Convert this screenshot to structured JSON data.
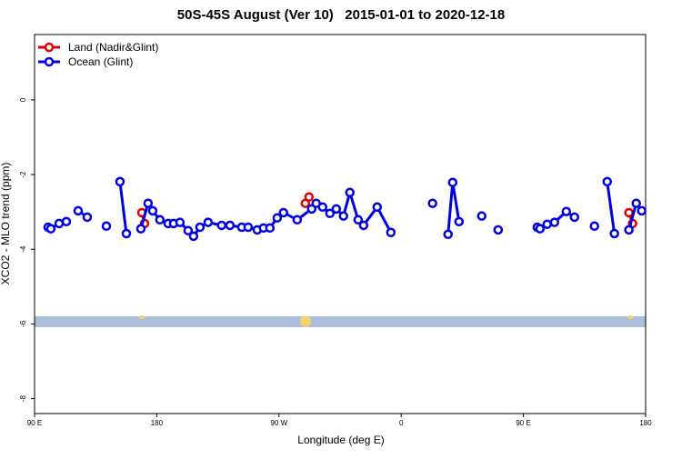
{
  "chart_data": {
    "type": "line",
    "title": "50S-45S August (Ver 10)   2015-01-01 to 2020-12-18",
    "x_label": "Longitude (deg E)",
    "y_label": "XCO2 - MLO trend (ppm)",
    "xlim": [
      90,
      540
    ],
    "ylim": [
      -8.4,
      1.75
    ],
    "xticks": [
      {
        "value": 90,
        "label": "90 E"
      },
      180,
      {
        "value": 270,
        "label": "90 W"
      },
      {
        "value": 360,
        "label": "0"
      },
      {
        "value": 450,
        "label": "90 E"
      },
      {
        "value": 540,
        "label": "180"
      }
    ],
    "yticks": [
      0,
      -2,
      -4,
      -6,
      -8
    ],
    "legend_position": "upper-left",
    "series": [
      {
        "name": "Land (Nadir&Glint)",
        "color": "#e00000",
        "x": [
          169,
          171,
          null,
          289.4,
          292.1,
          null,
          527.7,
          530.4
        ],
        "values": [
          -3.02,
          -3.31,
          null,
          -2.77,
          -2.6,
          null,
          -3.02,
          -3.31
        ]
      },
      {
        "name": "Ocean (Glint)",
        "color": "#0000e0",
        "x": [
          100.0,
          102.0,
          108.1,
          113.4,
          null,
          122.1,
          128.8,
          null,
          142.9,
          null,
          152.9,
          157.6,
          null,
          168.3,
          173.6,
          177.0,
          182.3,
          188.4,
          192.4,
          197.1,
          203.1,
          207.1,
          211.8,
          217.8,
          227.8,
          233.9,
          242.6,
          247.3,
          254.0,
          258.6,
          263.3,
          268.7,
          273.3,
          283.4,
          294.1,
          297.4,
          302.1,
          307.5,
          312.2,
          317.5,
          322.2,
          328.3,
          332.3,
          342.3,
          352.4,
          null,
          383.1,
          null,
          394.5,
          397.9,
          402.6,
          null,
          419.3,
          null,
          431.4,
          null,
          460.2,
          462.2,
          467.5,
          472.9,
          481.6,
          487.6,
          null,
          502.3,
          null,
          511.7,
          517.0,
          null,
          527.7,
          533.1,
          537.1
        ],
        "values": [
          -3.41,
          -3.45,
          -3.31,
          -3.26,
          null,
          -2.97,
          -3.14,
          null,
          -3.38,
          null,
          -2.19,
          -3.58,
          null,
          -3.45,
          -2.77,
          -2.97,
          -3.21,
          -3.31,
          -3.31,
          -3.28,
          -3.5,
          -3.65,
          -3.41,
          -3.28,
          -3.36,
          -3.36,
          -3.41,
          -3.41,
          -3.48,
          -3.43,
          -3.43,
          -3.16,
          -3.02,
          -3.21,
          -2.92,
          -2.77,
          -2.87,
          -3.04,
          -2.92,
          -3.11,
          -2.48,
          -3.21,
          -3.36,
          -2.87,
          -3.55,
          null,
          -2.77,
          null,
          -3.6,
          -2.21,
          -3.26,
          null,
          -3.11,
          null,
          -3.48,
          null,
          -3.41,
          -3.45,
          -3.33,
          -3.28,
          -2.99,
          -3.14,
          null,
          -3.38,
          null,
          -2.19,
          -3.58,
          null,
          -3.48,
          -2.77,
          -2.97
        ]
      }
    ]
  }
}
